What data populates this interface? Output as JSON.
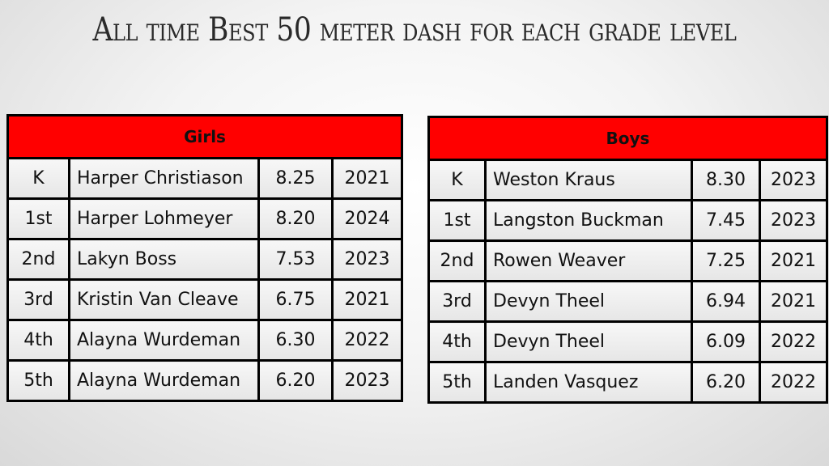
{
  "title": "All time Best 50 meter dash for each grade level",
  "girls": {
    "header": "Girls",
    "rows": [
      {
        "grade": "K",
        "name": "Harper Christiason",
        "time": "8.25",
        "year": "2021"
      },
      {
        "grade": "1st",
        "name": "Harper Lohmeyer",
        "time": "8.20",
        "year": "2024"
      },
      {
        "grade": "2nd",
        "name": "Lakyn Boss",
        "time": "7.53",
        "year": "2023"
      },
      {
        "grade": "3rd",
        "name": "Kristin Van Cleave",
        "time": "6.75",
        "year": "2021"
      },
      {
        "grade": "4th",
        "name": "Alayna Wurdeman",
        "time": "6.30",
        "year": "2022"
      },
      {
        "grade": "5th",
        "name": "Alayna Wurdeman",
        "time": "6.20",
        "year": "2023"
      }
    ]
  },
  "boys": {
    "header": "Boys",
    "rows": [
      {
        "grade": "K",
        "name": "Weston Kraus",
        "time": "8.30",
        "year": "2023"
      },
      {
        "grade": "1st",
        "name": "Langston Buckman",
        "time": "7.45",
        "year": "2023"
      },
      {
        "grade": "2nd",
        "name": "Rowen Weaver",
        "time": "7.25",
        "year": "2021"
      },
      {
        "grade": "3rd",
        "name": "Devyn Theel",
        "time": "6.94",
        "year": "2021"
      },
      {
        "grade": "4th",
        "name": "Devyn Theel",
        "time": "6.09",
        "year": "2022"
      },
      {
        "grade": "5th",
        "name": "Landen Vasquez",
        "time": "6.20",
        "year": "2022"
      }
    ]
  }
}
